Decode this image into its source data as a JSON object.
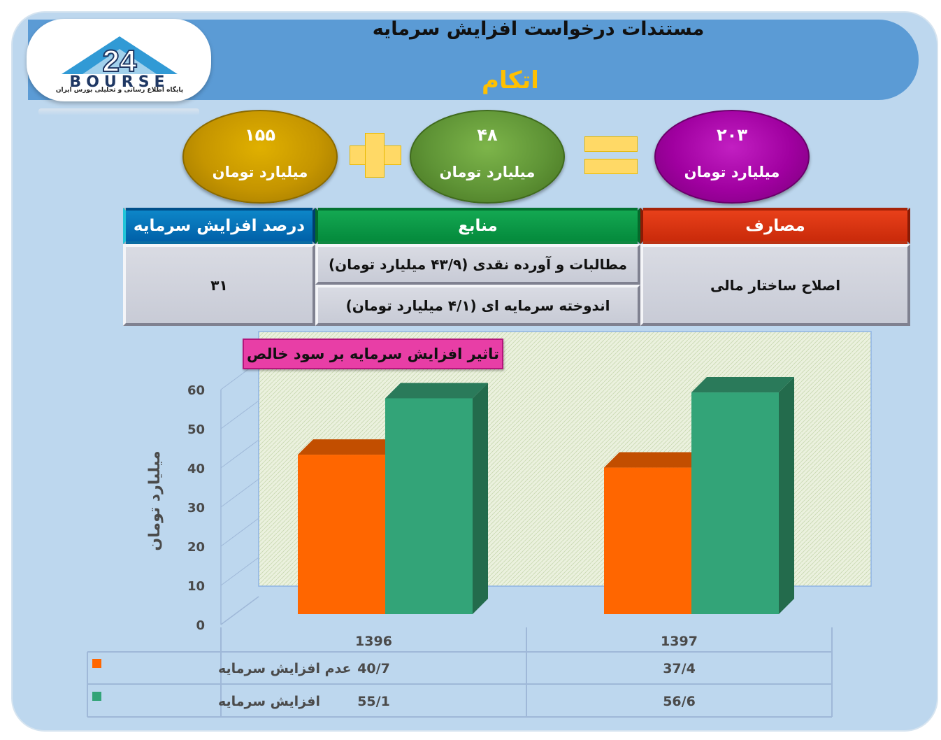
{
  "header": {
    "title": "مستندات درخواست افزایش سرمایه",
    "company": "اتکام"
  },
  "logo": {
    "text": "BOURSE",
    "number": "24",
    "subtitle": "پایگاه اطلاع رسانی و تحلیلی بورس ایران"
  },
  "equation": {
    "left_value": "۱۵۵",
    "middle_value": "۴۸",
    "right_value": "۲۰۳",
    "unit": "میلیارد تومان"
  },
  "table": {
    "headers": {
      "uses": "مصارف",
      "sources": "منابع",
      "percent": "درصد افزایش سرمایه"
    },
    "uses_value": "اصلاح ساختار مالی",
    "sources_values": [
      "مطالبات و آورده نقدی (۴۳/۹ میلیارد تومان)",
      "اندوخته سرمایه ای (۴/۱ میلیارد تومان)"
    ],
    "percent_value": "۳۱"
  },
  "colors": {
    "series_no_increase": "#ff6600",
    "series_increase": "#33a478"
  },
  "chart_data": {
    "type": "bar",
    "title": "تاثیر افزایش سرمایه بر سود خالص",
    "ylabel": "میلیارد تومان",
    "xlabel": "",
    "categories": [
      "1396",
      "1397"
    ],
    "ylim": [
      0,
      60
    ],
    "yticks": [
      "0",
      "10",
      "20",
      "30",
      "40",
      "50",
      "60"
    ],
    "series": [
      {
        "name": "عدم افزایش سرمایه",
        "values": [
          40.7,
          37.4
        ],
        "labels": [
          "40/7",
          "37/4"
        ]
      },
      {
        "name": "افزایش سرمایه",
        "values": [
          55.1,
          56.6
        ],
        "labels": [
          "55/1",
          "56/6"
        ]
      }
    ],
    "grid": false,
    "legend": "data-table-left"
  }
}
